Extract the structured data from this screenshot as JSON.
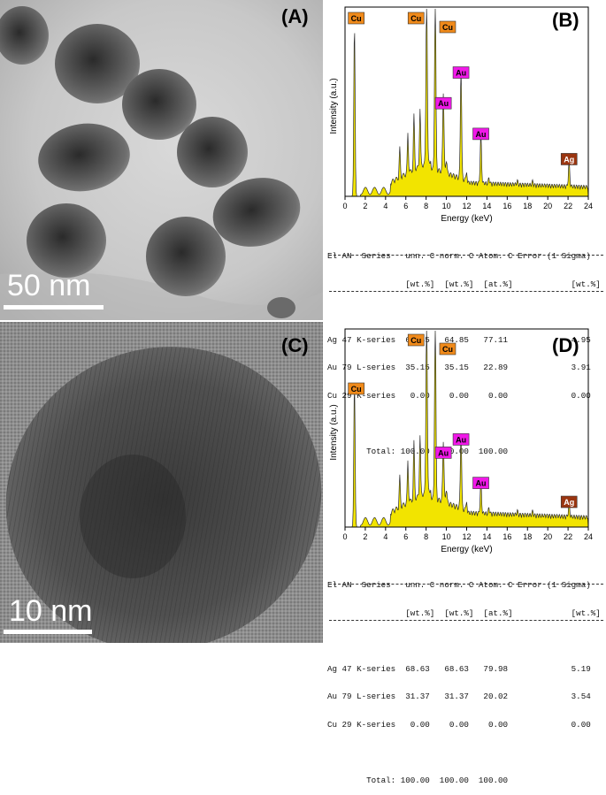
{
  "panels": {
    "A": {
      "label": "(A)",
      "scale_bar": "50 nm"
    },
    "B": {
      "label": "(B)"
    },
    "C": {
      "label": "(C)",
      "scale_bar": "10 nm"
    },
    "D": {
      "label": "(D)"
    }
  },
  "colors": {
    "spectrum_fill": "#f2e400",
    "cu_tag": "#f08a1a",
    "au_tag": "#f018e8",
    "ag_tag": "#9a3510"
  },
  "chart_data": [
    {
      "type": "area",
      "panel": "B",
      "xlabel": "Energy (keV)",
      "ylabel": "Intensity (a.u.)",
      "xlim": [
        0,
        24
      ],
      "xticks": [
        0,
        2,
        4,
        6,
        8,
        10,
        12,
        14,
        16,
        18,
        20,
        22,
        24
      ],
      "peaks": [
        {
          "element": "Cu",
          "energy": 0.93,
          "height": 0.95
        },
        {
          "element": "Cu",
          "energy": 8.05,
          "height": 1.0
        },
        {
          "element": "Cu",
          "energy": 8.9,
          "height": 1.0
        },
        {
          "element": "Au",
          "energy": 9.7,
          "height": 0.45
        },
        {
          "element": "Au",
          "energy": 11.44,
          "height": 0.62
        },
        {
          "element": "Au",
          "energy": 13.4,
          "height": 0.28
        },
        {
          "element": "Ag",
          "energy": 22.1,
          "height": 0.14
        }
      ],
      "table": {
        "header1": "El AN  Series   unn. C norm. C Atom. C Error (1 Sigma)",
        "header2": "                [wt.%]  [wt.%]  [at.%]            [wt.%]",
        "rows": [
          "Ag 47 K-series  64.85   64.85   77.11             4.95",
          "Au 79 L-series  35.15   35.15   22.89             3.91",
          "Cu 29 K-series   0.00    0.00    0.00             0.00"
        ],
        "total": "        Total: 100.00  100.00  100.00"
      }
    },
    {
      "type": "area",
      "panel": "D",
      "xlabel": "Energy (keV)",
      "ylabel": "Intensity (a.u.)",
      "xlim": [
        0,
        24
      ],
      "xticks": [
        0,
        2,
        4,
        6,
        8,
        10,
        12,
        14,
        16,
        18,
        20,
        22,
        24
      ],
      "peaks": [
        {
          "element": "Cu",
          "energy": 0.93,
          "height": 0.76
        },
        {
          "element": "Cu",
          "energy": 8.05,
          "height": 1.0
        },
        {
          "element": "Cu",
          "energy": 8.9,
          "height": 1.0
        },
        {
          "element": "Au",
          "energy": 9.7,
          "height": 0.33
        },
        {
          "element": "Au",
          "energy": 11.44,
          "height": 0.4
        },
        {
          "element": "Au",
          "energy": 13.4,
          "height": 0.17
        },
        {
          "element": "Ag",
          "energy": 22.1,
          "height": 0.07
        }
      ],
      "table": {
        "header1": "El AN  Series   unn. C norm. C Atom. C Error (1 Sigma)",
        "header2": "                [wt.%]  [wt.%]  [at.%]            [wt.%]",
        "rows": [
          "Ag 47 K-series  68.63   68.63   79.98             5.19",
          "Au 79 L-series  31.37   31.37   20.02             3.54",
          "Cu 29 K-series   0.00    0.00    0.00             0.00"
        ],
        "total": "        Total: 100.00  100.00  100.00"
      }
    }
  ]
}
